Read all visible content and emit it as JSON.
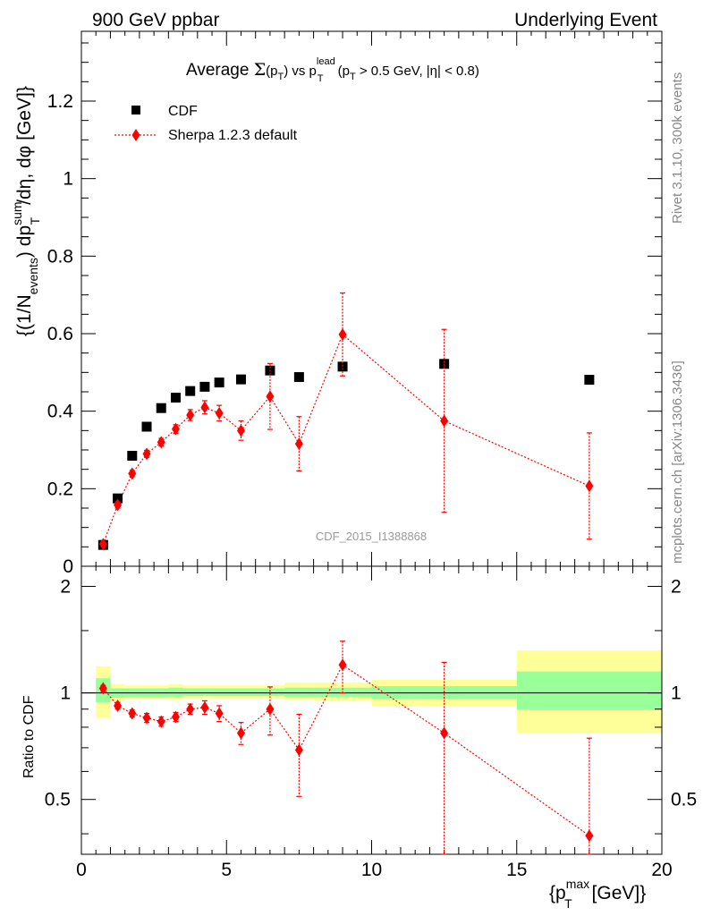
{
  "header": {
    "left": "900 GeV ppbar",
    "right": "Underlying Event",
    "side_rivet": "Rivet 3.1.10,  300k events",
    "side_mcplots": "mcplots.cern.ch [arXiv:1306.3436]"
  },
  "chart_data": {
    "type": "scatter",
    "title": "Average Σ(pT) vs pT lead (pT > 0.5 GeV, |η| < 0.8)",
    "title_parts": {
      "prefix": "Average ",
      "sigma": "Σ",
      "p1": "(p",
      "sub_t": "T",
      "p2": ") vs p",
      "sup_lead": "lead",
      "p3": " (p",
      "p4": " > 0.5 GeV, |η| < 0.8)"
    },
    "analysis_label": "CDF_2015_I1388868",
    "ylabel": "{(1/N_events) dp_T^sum/dη, dφ [GeV]}",
    "ylabel_parts": {
      "a": "{(1/N",
      "sub_events": "events",
      "b": ") dp",
      "sup_sum": "sum",
      "sub_t": "T",
      "c": "/dη, dφ [GeV]}"
    },
    "ratio_ylabel": "Ratio to CDF",
    "xlabel": "{p_T^max [GeV]}",
    "xlabel_parts": {
      "a": "{p",
      "sup_max": "max",
      "sub_t": "T",
      "b": " [GeV]}"
    },
    "xlim": [
      0,
      20
    ],
    "ylim": [
      0,
      1.38
    ],
    "ratio_ylim": [
      0.35,
      2.28
    ],
    "x_ticks": [
      "0",
      "5",
      "10",
      "15",
      "20"
    ],
    "y_ticks": [
      "0",
      "0.2",
      "0.4",
      "0.6",
      "0.8",
      "1",
      "1.2"
    ],
    "ratio_ticks": [
      "0.5",
      "1",
      "2"
    ],
    "legend": {
      "placement": "top-left",
      "entries": [
        "CDF",
        "Sherpa 1.2.3 default"
      ]
    },
    "colors": {
      "data": "#000000",
      "mc": "#ff0000",
      "band_inner": "#99ff99",
      "band_outer": "#ffff99"
    },
    "series": [
      {
        "name": "CDF",
        "marker": "square",
        "x": [
          0.75,
          1.25,
          1.75,
          2.25,
          2.75,
          3.25,
          3.75,
          4.25,
          4.75,
          5.5,
          6.5,
          7.5,
          9.0,
          12.5,
          17.5
        ],
        "y": [
          0.055,
          0.175,
          0.285,
          0.36,
          0.408,
          0.435,
          0.452,
          0.463,
          0.474,
          0.482,
          0.505,
          0.488,
          0.515,
          0.522,
          0.481
        ]
      },
      {
        "name": "Sherpa 1.2.3 default",
        "marker": "diamond",
        "x": [
          0.75,
          1.25,
          1.75,
          2.25,
          2.75,
          3.25,
          3.75,
          4.25,
          4.75,
          5.5,
          6.5,
          7.5,
          9.0,
          12.5,
          17.5
        ],
        "y": [
          0.057,
          0.158,
          0.239,
          0.29,
          0.32,
          0.354,
          0.39,
          0.41,
          0.395,
          0.35,
          0.438,
          0.316,
          0.598,
          0.375,
          0.207
        ],
        "yerr": [
          0.005,
          0.008,
          0.008,
          0.009,
          0.01,
          0.011,
          0.014,
          0.017,
          0.02,
          0.025,
          0.085,
          0.07,
          0.107,
          0.236,
          0.137
        ]
      }
    ],
    "ratio": {
      "x": [
        0.75,
        1.25,
        1.75,
        2.25,
        2.75,
        3.25,
        3.75,
        4.25,
        4.75,
        5.5,
        6.5,
        7.5,
        9.0,
        12.5,
        17.5
      ],
      "y": [
        1.03,
        0.92,
        0.875,
        0.85,
        0.83,
        0.855,
        0.9,
        0.91,
        0.875,
        0.77,
        0.9,
        0.69,
        1.2,
        0.77,
        0.395
      ],
      "yerr": [
        0.02,
        0.02,
        0.02,
        0.025,
        0.025,
        0.025,
        0.03,
        0.04,
        0.045,
        0.055,
        0.14,
        0.18,
        0.2,
        0.45,
        0.35
      ],
      "bands": [
        {
          "x0": 0.5,
          "x1": 1.0,
          "inner": [
            0.94,
            1.1
          ],
          "outer": [
            0.85,
            1.19
          ]
        },
        {
          "x0": 1.0,
          "x1": 1.5,
          "inner": [
            0.97,
            1.03
          ],
          "outer": [
            0.945,
            1.06
          ]
        },
        {
          "x0": 1.5,
          "x1": 3.0,
          "inner": [
            0.975,
            1.03
          ],
          "outer": [
            0.96,
            1.05
          ]
        },
        {
          "x0": 3.0,
          "x1": 3.5,
          "inner": [
            0.975,
            1.035
          ],
          "outer": [
            0.955,
            1.06
          ]
        },
        {
          "x0": 3.5,
          "x1": 7.0,
          "inner": [
            0.98,
            1.03
          ],
          "outer": [
            0.965,
            1.05
          ]
        },
        {
          "x0": 7.0,
          "x1": 8.0,
          "inner": [
            0.975,
            1.035
          ],
          "outer": [
            0.955,
            1.07
          ]
        },
        {
          "x0": 8.0,
          "x1": 10.0,
          "inner": [
            0.975,
            1.035
          ],
          "outer": [
            0.95,
            1.07
          ]
        },
        {
          "x0": 10.0,
          "x1": 15.0,
          "inner": [
            0.96,
            1.045
          ],
          "outer": [
            0.92,
            1.09
          ]
        },
        {
          "x0": 15.0,
          "x1": 20.0,
          "inner": [
            0.895,
            1.15
          ],
          "outer": [
            0.77,
            1.32
          ]
        }
      ]
    }
  }
}
